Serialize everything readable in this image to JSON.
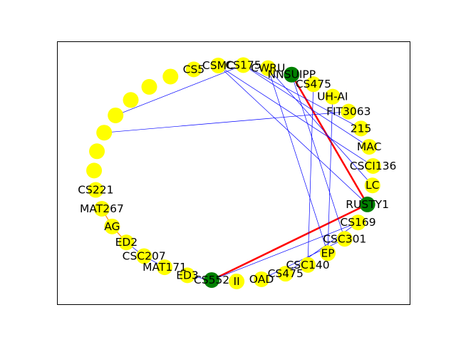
{
  "colors": {
    "plain_node": "#ffff00",
    "highlight_node": "#008000",
    "plain_edge": "#0000ff",
    "highlight_edge": "#ff0000",
    "orange_edge": "#ff8c00",
    "frame": "#000000",
    "background": "#ffffff"
  },
  "graph": {
    "nodes": [
      {
        "id": "n0",
        "label": "",
        "highlight": false
      },
      {
        "id": "n1",
        "label": "",
        "highlight": false
      },
      {
        "id": "n2",
        "label": "",
        "highlight": false
      },
      {
        "id": "n3",
        "label": "",
        "highlight": false
      },
      {
        "id": "n4",
        "label": "",
        "highlight": false
      },
      {
        "id": "n5",
        "label": "",
        "highlight": false
      },
      {
        "id": "n6",
        "label": "",
        "highlight": false
      },
      {
        "id": "n7",
        "label": "CS221",
        "highlight": false
      },
      {
        "id": "n8",
        "label": "MAT267",
        "highlight": false
      },
      {
        "id": "n9",
        "label": "AG",
        "highlight": false
      },
      {
        "id": "n10",
        "label": "ED2",
        "highlight": false
      },
      {
        "id": "n11",
        "label": "CSC207",
        "highlight": false
      },
      {
        "id": "n12",
        "label": "MAT171",
        "highlight": false
      },
      {
        "id": "n13",
        "label": "ED3",
        "highlight": false
      },
      {
        "id": "n14",
        "label": "CS552",
        "highlight": true
      },
      {
        "id": "n15",
        "label": "II",
        "highlight": false
      },
      {
        "id": "n16",
        "label": "OAD",
        "highlight": false
      },
      {
        "id": "n17",
        "label": "CS475",
        "highlight": false
      },
      {
        "id": "n18",
        "label": "CSC140",
        "highlight": false
      },
      {
        "id": "n19",
        "label": "EP",
        "highlight": false
      },
      {
        "id": "n20",
        "label": "CSC301",
        "highlight": false
      },
      {
        "id": "n21",
        "label": "CS169",
        "highlight": false
      },
      {
        "id": "n22",
        "label": "RUSTY1",
        "highlight": true
      },
      {
        "id": "n23",
        "label": "LC",
        "highlight": false
      },
      {
        "id": "n24",
        "label": "CSCI136",
        "highlight": false
      },
      {
        "id": "n25",
        "label": "MAC",
        "highlight": false
      },
      {
        "id": "n26",
        "label": "215",
        "highlight": false
      },
      {
        "id": "n27",
        "label": "FIT3063",
        "highlight": false
      },
      {
        "id": "n28",
        "label": "UH-AI",
        "highlight": false
      },
      {
        "id": "n29",
        "label": "CS475",
        "highlight": false
      },
      {
        "id": "n30",
        "label": "NNSUIPP",
        "highlight": true
      },
      {
        "id": "n31",
        "label": "CWRU",
        "highlight": false
      },
      {
        "id": "n32",
        "label": "CS175",
        "highlight": false
      },
      {
        "id": "n33",
        "label": "CSMC",
        "highlight": false
      },
      {
        "id": "n34",
        "label": "CS5",
        "highlight": false
      }
    ],
    "edges": [
      {
        "source": "n30",
        "target": "n22",
        "kind": "highlight"
      },
      {
        "source": "n22",
        "target": "n14",
        "kind": "highlight"
      },
      {
        "source": "n9",
        "target": "n10",
        "kind": "orange"
      },
      {
        "source": "n8",
        "target": "n9",
        "kind": "orange"
      },
      {
        "source": "n3",
        "target": "n32",
        "kind": "plain"
      },
      {
        "source": "n4",
        "target": "n27",
        "kind": "plain"
      },
      {
        "source": "n33",
        "target": "n24",
        "kind": "plain"
      },
      {
        "source": "n33",
        "target": "n22",
        "kind": "plain"
      },
      {
        "source": "n32",
        "target": "n26",
        "kind": "plain"
      },
      {
        "source": "n32",
        "target": "n25",
        "kind": "plain"
      },
      {
        "source": "n31",
        "target": "n23",
        "kind": "plain"
      },
      {
        "source": "n31",
        "target": "n19",
        "kind": "plain"
      },
      {
        "source": "n30",
        "target": "n20",
        "kind": "plain"
      },
      {
        "source": "n29",
        "target": "n18",
        "kind": "plain"
      },
      {
        "source": "n28",
        "target": "n19",
        "kind": "plain"
      },
      {
        "source": "n21",
        "target": "n14",
        "kind": "plain"
      },
      {
        "source": "n20",
        "target": "n16",
        "kind": "plain"
      },
      {
        "source": "n21",
        "target": "n17",
        "kind": "plain"
      },
      {
        "source": "n13",
        "target": "n14",
        "kind": "plain"
      },
      {
        "source": "n11",
        "target": "n12",
        "kind": "plain"
      },
      {
        "source": "n10",
        "target": "n11",
        "kind": "plain"
      }
    ]
  }
}
